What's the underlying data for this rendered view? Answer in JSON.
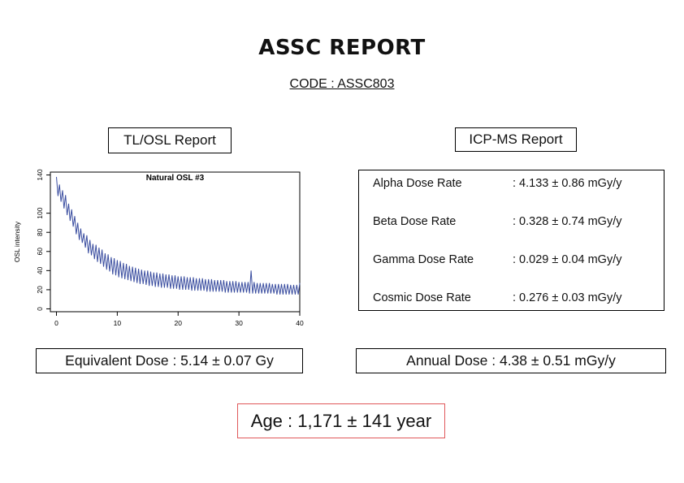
{
  "report": {
    "title": "ASSC REPORT",
    "code": "CODE : ASSC803"
  },
  "tl_osl": {
    "header": "TL/OSL Report",
    "equivalent_dose": "Equivalent Dose : 5.14 ± 0.07 Gy"
  },
  "icp_ms": {
    "header": "ICP-MS Report",
    "rows": [
      {
        "label": "Alpha Dose Rate",
        "value": ": 4.133 ± 0.86 mGy/y"
      },
      {
        "label": "Beta Dose Rate",
        "value": ": 0.328 ± 0.74 mGy/y"
      },
      {
        "label": "Gamma Dose Rate",
        "value": ": 0.029 ± 0.04 mGy/y"
      },
      {
        "label": "Cosmic Dose Rate",
        "value": ": 0.276 ± 0.03 mGy/y"
      }
    ],
    "annual_dose": "Annual Dose : 4.38 ± 0.51 mGy/y"
  },
  "age": "Age : 1,171 ± 141 year",
  "colors": {
    "series": "#3b4ea0",
    "age_border": "#e0585a"
  },
  "chart_data": {
    "type": "line",
    "title": "Natural OSL #3",
    "xlabel": "",
    "ylabel": "OSL intensity",
    "xlim": [
      -1,
      40
    ],
    "ylim": [
      -3,
      143
    ],
    "xticks": [
      0,
      10,
      20,
      30,
      40
    ],
    "yticks": [
      0,
      20,
      40,
      60,
      80,
      100,
      140
    ],
    "grid": false,
    "series": [
      {
        "name": "",
        "x": [
          0,
          0.25,
          0.5,
          0.75,
          1,
          1.25,
          1.5,
          1.75,
          2,
          2.25,
          2.5,
          2.75,
          3,
          3.25,
          3.5,
          3.75,
          4,
          4.25,
          4.5,
          4.75,
          5,
          5.25,
          5.5,
          5.75,
          6,
          6.25,
          6.5,
          6.75,
          7,
          7.25,
          7.5,
          7.75,
          8,
          8.25,
          8.5,
          8.75,
          9,
          9.25,
          9.5,
          9.75,
          10,
          10.25,
          10.5,
          10.75,
          11,
          11.25,
          11.5,
          11.75,
          12,
          12.25,
          12.5,
          12.75,
          13,
          13.25,
          13.5,
          13.75,
          14,
          14.25,
          14.5,
          14.75,
          15,
          15.25,
          15.5,
          15.75,
          16,
          16.25,
          16.5,
          16.75,
          17,
          17.25,
          17.5,
          17.75,
          18,
          18.25,
          18.5,
          18.75,
          19,
          19.25,
          19.5,
          19.75,
          20,
          20.25,
          20.5,
          20.75,
          21,
          21.25,
          21.5,
          21.75,
          22,
          22.25,
          22.5,
          22.75,
          23,
          23.25,
          23.5,
          23.75,
          24,
          24.25,
          24.5,
          24.75,
          25,
          25.25,
          25.5,
          25.75,
          26,
          26.25,
          26.5,
          26.75,
          27,
          27.25,
          27.5,
          27.75,
          28,
          28.25,
          28.5,
          28.75,
          29,
          29.25,
          29.5,
          29.75,
          30,
          30.25,
          30.5,
          30.75,
          31,
          31.25,
          31.5,
          31.75,
          32,
          32.25,
          32.5,
          32.75,
          33,
          33.25,
          33.5,
          33.75,
          34,
          34.25,
          34.5,
          34.75,
          35,
          35.25,
          35.5,
          35.75,
          36,
          36.25,
          36.5,
          36.75,
          37,
          37.25,
          37.5,
          37.75,
          38,
          38.25,
          38.5,
          38.75,
          39,
          39.25,
          39.5,
          39.75,
          40
        ],
        "y": [
          138,
          118,
          130,
          112,
          124,
          105,
          119,
          98,
          110,
          92,
          104,
          86,
          97,
          78,
          90,
          72,
          84,
          69,
          79,
          64,
          77,
          58,
          72,
          56,
          68,
          52,
          67,
          49,
          64,
          47,
          62,
          44,
          58,
          41,
          57,
          39,
          54,
          36,
          53,
          35,
          51,
          33,
          50,
          32,
          48,
          31,
          47,
          30,
          45,
          29,
          44,
          28,
          43,
          27,
          42,
          26,
          41,
          26,
          40,
          25,
          40,
          24,
          39,
          24,
          38,
          23,
          38,
          23,
          37,
          22,
          37,
          22,
          36,
          22,
          36,
          21,
          35,
          21,
          35,
          21,
          34,
          20,
          34,
          20,
          34,
          20,
          33,
          20,
          33,
          19,
          33,
          19,
          32,
          19,
          32,
          19,
          32,
          19,
          31,
          18,
          31,
          18,
          31,
          18,
          30,
          18,
          30,
          18,
          30,
          18,
          30,
          17,
          29,
          17,
          29,
          17,
          29,
          17,
          29,
          17,
          28,
          17,
          28,
          17,
          28,
          17,
          28,
          16,
          40,
          16,
          28,
          16,
          27,
          16,
          27,
          16,
          27,
          16,
          27,
          16,
          27,
          16,
          26,
          16,
          26,
          15,
          26,
          15,
          26,
          15,
          26,
          15,
          26,
          15,
          25,
          15,
          25,
          15,
          25,
          15,
          27
        ]
      }
    ]
  }
}
